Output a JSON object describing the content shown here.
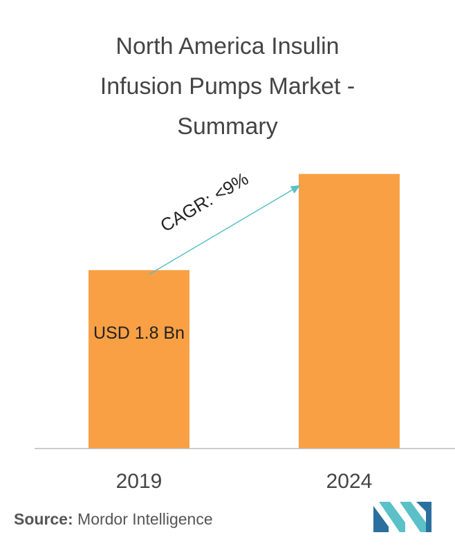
{
  "title_lines": [
    "North America Insulin",
    "Infusion Pumps Market -",
    "Summary"
  ],
  "chart_data": {
    "type": "bar",
    "categories": [
      "2019",
      "2024"
    ],
    "values": [
      1.8,
      2.77
    ],
    "value_labels": [
      "USD 1.8 Bn",
      ""
    ],
    "ylim": [
      0,
      3.2
    ],
    "grid": false,
    "annotation": "CAGR: <9%",
    "colors": {
      "bar": "#F9A044",
      "arrow": "#5BC0C8",
      "axis": "#BBBBBB"
    }
  },
  "source": {
    "label": "Source:",
    "text": "Mordor Intelligence"
  },
  "logo": {
    "name": "mordor-intelligence-logo",
    "color_dark": "#2A6F9E",
    "color_light": "#5BC0C8"
  }
}
